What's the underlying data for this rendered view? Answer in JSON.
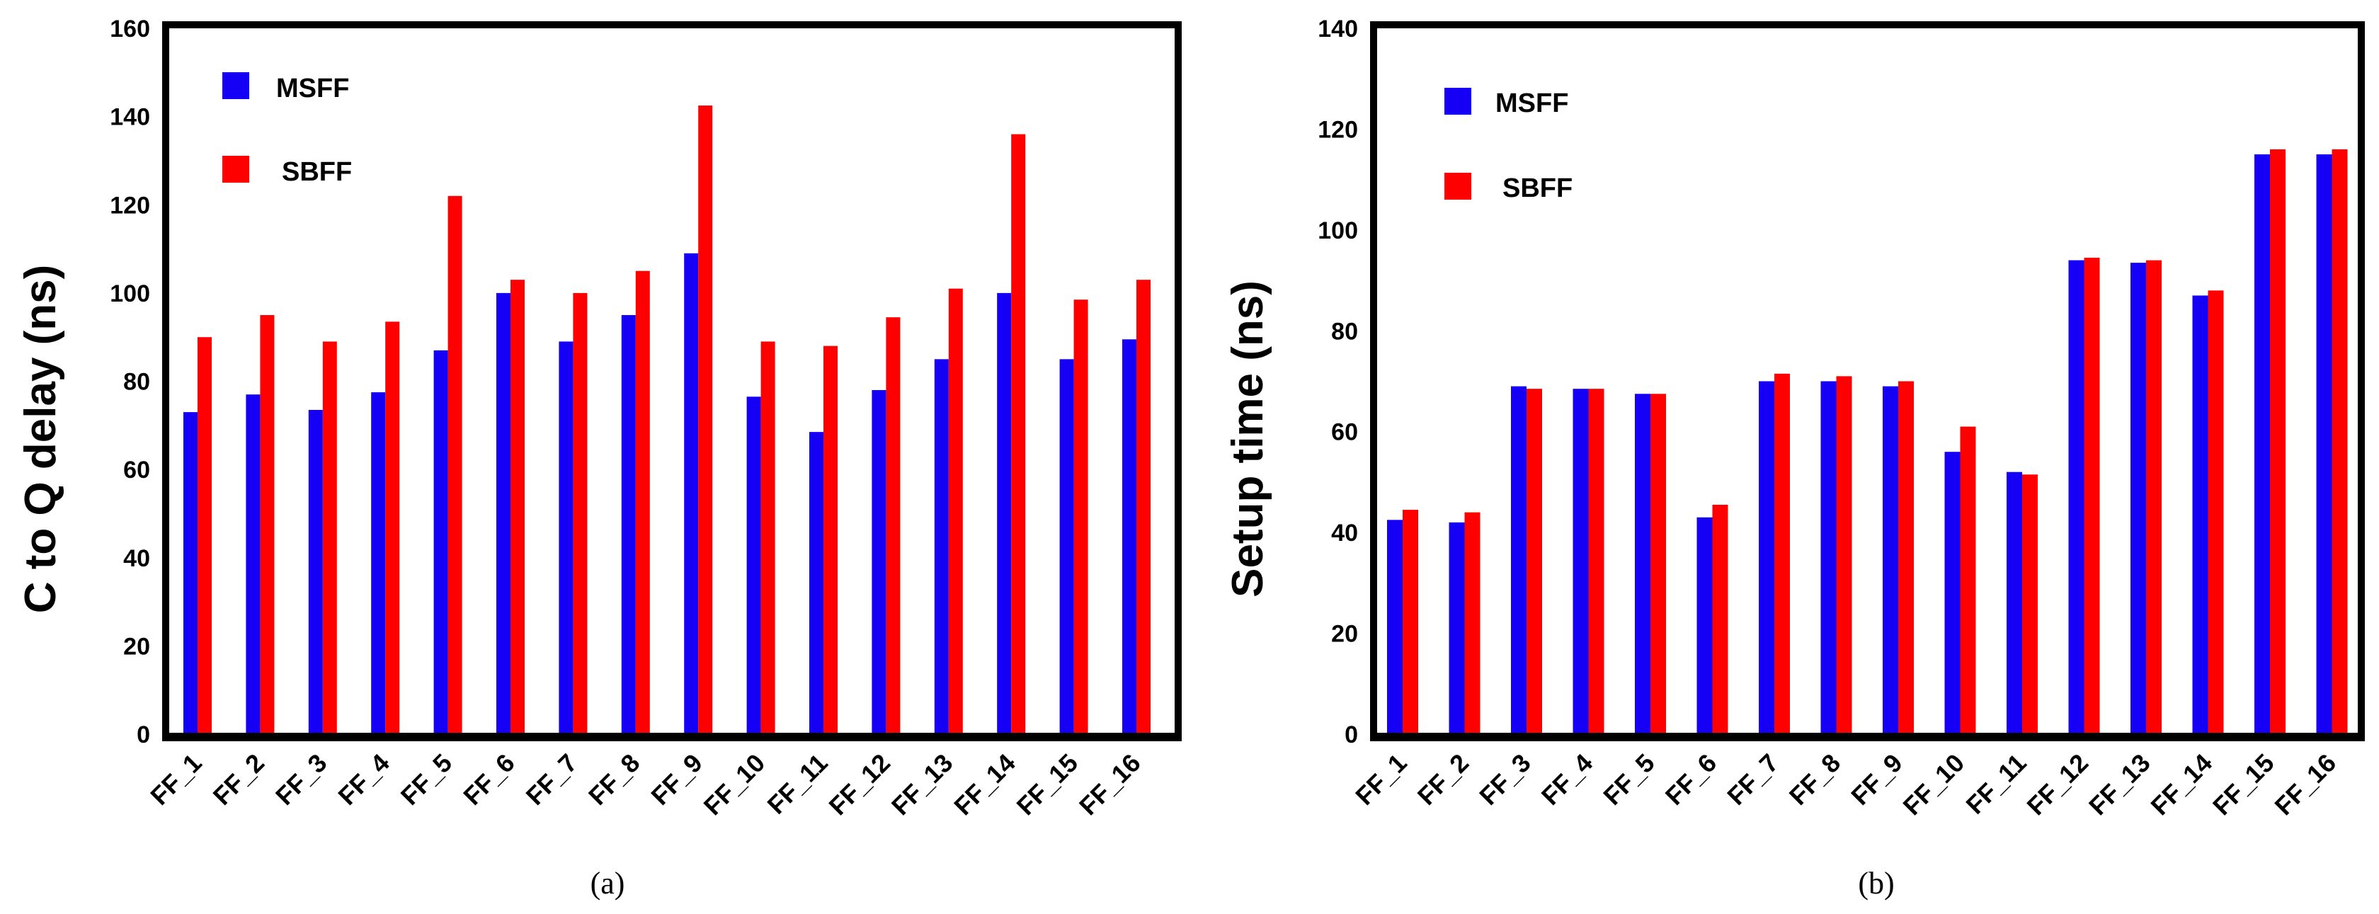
{
  "chart_data": [
    {
      "type": "bar",
      "panel_label": "(a)",
      "ylabel": "C to Q delay (ns)",
      "xlabel": "",
      "ylim": [
        0,
        160
      ],
      "yticks": [
        0,
        20,
        40,
        60,
        80,
        100,
        120,
        140,
        160
      ],
      "categories": [
        "FF_1",
        "FF_2",
        "FF_3",
        "FF_4",
        "FF_5",
        "FF_6",
        "FF_7",
        "FF_8",
        "FF_9",
        "FF_10",
        "FF_11",
        "FF_12",
        "FF_13",
        "FF_14",
        "FF_15",
        "FF_16"
      ],
      "series": [
        {
          "name": "MSFF",
          "color": "#1500f5",
          "values": [
            73,
            77,
            73.5,
            77.5,
            87,
            100,
            89,
            95,
            109,
            76.5,
            68.5,
            78,
            85,
            100,
            85,
            89.5
          ]
        },
        {
          "name": "SBFF",
          "color": "#ff0000",
          "values": [
            90,
            95,
            89,
            93.5,
            122,
            103,
            100,
            105,
            142.5,
            89,
            88,
            94.5,
            101,
            136,
            98.5,
            103
          ]
        }
      ],
      "legend_position": "top-left",
      "grid": false
    },
    {
      "type": "bar",
      "panel_label": "(b)",
      "ylabel": "Setup time (ns)",
      "xlabel": "",
      "ylim": [
        0,
        140
      ],
      "yticks": [
        0,
        20,
        40,
        60,
        80,
        100,
        120,
        140
      ],
      "categories": [
        "FF_1",
        "FF_2",
        "FF_3",
        "FF_4",
        "FF_5",
        "FF_6",
        "FF_7",
        "FF_8",
        "FF_9",
        "FF_10",
        "FF_11",
        "FF_12",
        "FF_13",
        "FF_14",
        "FF_15",
        "FF_16"
      ],
      "series": [
        {
          "name": "MSFF",
          "color": "#1500f5",
          "values": [
            42.5,
            42,
            69,
            68.5,
            67.5,
            43,
            70,
            70,
            69,
            56,
            52,
            94,
            93.5,
            87,
            115,
            115
          ]
        },
        {
          "name": "SBFF",
          "color": "#ff0000",
          "values": [
            44.5,
            44,
            68.5,
            68.5,
            67.5,
            45.5,
            71.5,
            71,
            70,
            61,
            51.5,
            94.5,
            94,
            88,
            116,
            116
          ]
        }
      ],
      "legend_position": "top-left",
      "grid": false
    }
  ]
}
